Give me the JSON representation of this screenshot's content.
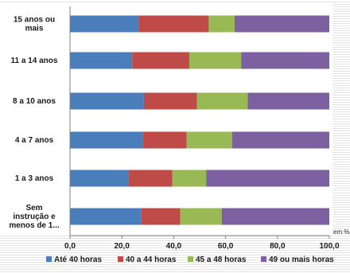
{
  "chart_data": {
    "type": "bar",
    "orientation": "horizontal",
    "stacked": true,
    "categories": [
      [
        "15 anos ou",
        "mais"
      ],
      [
        "11 a 14 anos"
      ],
      [
        "8 a 10 anos"
      ],
      [
        "4 a 7 anos"
      ],
      [
        "1 a 3 anos"
      ],
      [
        "Sem",
        "instrução e",
        "menos de 1..."
      ]
    ],
    "series": [
      {
        "name": "Até 40 horas",
        "color": "#4a7ebb",
        "values": [
          26.5,
          24.0,
          28.5,
          28.0,
          22.5,
          27.5
        ]
      },
      {
        "name": "40 a 44  horas",
        "color": "#be4b48",
        "values": [
          27.0,
          22.0,
          20.5,
          17.0,
          17.0,
          15.0
        ]
      },
      {
        "name": "45 a 48  horas",
        "color": "#98b954",
        "values": [
          10.0,
          20.0,
          19.5,
          17.5,
          13.0,
          16.0
        ]
      },
      {
        "name": "49 ou mais  horas",
        "color": "#7d60a0",
        "values": [
          36.5,
          34.0,
          31.5,
          37.5,
          47.5,
          41.5
        ]
      }
    ],
    "xlim": [
      0,
      100
    ],
    "xticks": [
      "0,0",
      "20,0",
      "40,0",
      "60,0",
      "80,0",
      "100,0"
    ],
    "unit": "em %",
    "grid": false,
    "legend_position": "bottom"
  }
}
